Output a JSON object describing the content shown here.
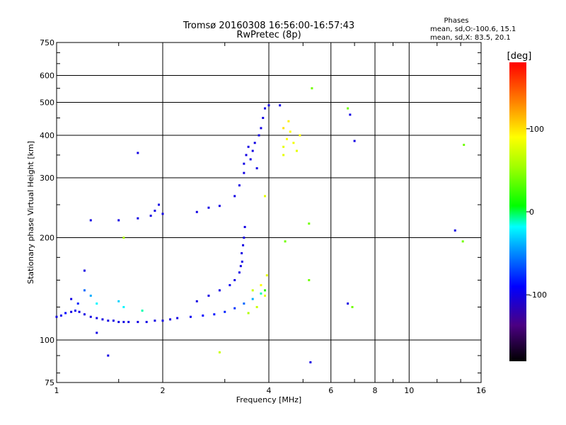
{
  "chart_data": {
    "type": "scatter",
    "title": "Tromsø 20160308 16:56:00-16:57:43",
    "subtitle": "RwPretec (8p)",
    "xlabel": "Frequency [MHz]",
    "ylabel": "Stationary phase Virtual Height [km]",
    "x_scale": "log",
    "y_scale": "log",
    "xlim": [
      1,
      16
    ],
    "ylim": [
      75,
      750
    ],
    "grid": true,
    "x_ticks": [
      {
        "value": 1,
        "label": "1"
      },
      {
        "value": 2,
        "label": "2"
      },
      {
        "value": 4,
        "label": "4"
      },
      {
        "value": 6,
        "label": "6"
      },
      {
        "value": 8,
        "label": "8"
      },
      {
        "value": 10,
        "label": "10"
      },
      {
        "value": 16,
        "label": "16"
      }
    ],
    "y_ticks": [
      {
        "value": 75,
        "label": "75"
      },
      {
        "value": 100,
        "label": "100"
      },
      {
        "value": 200,
        "label": "200"
      },
      {
        "value": 300,
        "label": "300"
      },
      {
        "value": 400,
        "label": "400"
      },
      {
        "value": 500,
        "label": "500"
      },
      {
        "value": 600,
        "label": "600"
      },
      {
        "value": 750,
        "label": "750"
      }
    ],
    "stats_heading": "Phases",
    "stats_lines": [
      "mean, sd,O:-100.6, 15.1",
      "mean, sd,X:  83.5, 20.1"
    ],
    "colorbar": {
      "label": "[deg]",
      "range": [
        -180,
        180
      ],
      "ticks": [
        {
          "value": 100,
          "label": "100"
        },
        {
          "value": 0,
          "label": "0"
        },
        {
          "value": -100,
          "label": "-100"
        }
      ]
    },
    "series": [
      {
        "points": [
          [
            1.0,
            117,
            -100
          ],
          [
            1.03,
            118,
            -95
          ],
          [
            1.06,
            120,
            -90
          ],
          [
            1.1,
            121,
            -100
          ],
          [
            1.13,
            122,
            -95
          ],
          [
            1.16,
            121,
            -100
          ],
          [
            1.2,
            119,
            -100
          ],
          [
            1.25,
            117,
            -100
          ],
          [
            1.3,
            116,
            -100
          ],
          [
            1.35,
            115,
            -100
          ],
          [
            1.4,
            114,
            -100
          ],
          [
            1.45,
            114,
            -100
          ],
          [
            1.5,
            113,
            -100
          ],
          [
            1.55,
            113,
            -100
          ],
          [
            1.6,
            113,
            -100
          ],
          [
            1.7,
            113,
            -100
          ],
          [
            1.8,
            113,
            -100
          ],
          [
            1.9,
            114,
            -100
          ],
          [
            2.0,
            114,
            -100
          ],
          [
            2.1,
            115,
            -100
          ],
          [
            2.2,
            116,
            -100
          ],
          [
            2.4,
            117,
            -95
          ],
          [
            2.6,
            118,
            -90
          ],
          [
            2.8,
            119,
            -85
          ],
          [
            3.0,
            121,
            -80
          ],
          [
            3.2,
            124,
            -75
          ],
          [
            3.4,
            128,
            -60
          ],
          [
            3.6,
            132,
            -40
          ],
          [
            3.8,
            137,
            -10
          ],
          [
            3.9,
            140,
            20
          ],
          [
            1.25,
            135,
            -40
          ],
          [
            1.3,
            128,
            -20
          ],
          [
            1.2,
            140,
            -60
          ],
          [
            1.5,
            130,
            -30
          ],
          [
            1.55,
            125,
            -20
          ],
          [
            1.75,
            122,
            -10
          ],
          [
            1.1,
            132,
            -100
          ],
          [
            1.15,
            128,
            -80
          ],
          [
            3.35,
            180,
            -100
          ],
          [
            3.38,
            190,
            -100
          ],
          [
            3.4,
            200,
            -100
          ],
          [
            3.42,
            215,
            -100
          ],
          [
            3.36,
            170,
            -100
          ],
          [
            3.33,
            165,
            -100
          ],
          [
            3.3,
            158,
            -100
          ],
          [
            3.2,
            150,
            -100
          ],
          [
            3.1,
            145,
            -95
          ],
          [
            2.9,
            140,
            -100
          ],
          [
            2.7,
            135,
            -100
          ],
          [
            2.5,
            130,
            -100
          ],
          [
            3.5,
            120,
            60
          ],
          [
            3.7,
            125,
            70
          ],
          [
            3.9,
            135,
            80
          ],
          [
            3.8,
            145,
            90
          ],
          [
            3.95,
            155,
            80
          ],
          [
            3.6,
            140,
            70
          ],
          [
            1.25,
            225,
            -100
          ],
          [
            1.5,
            225,
            -100
          ],
          [
            1.7,
            228,
            -100
          ],
          [
            1.85,
            232,
            -100
          ],
          [
            1.9,
            240,
            -100
          ],
          [
            1.95,
            250,
            -100
          ],
          [
            2.0,
            235,
            -100
          ],
          [
            2.5,
            238,
            -100
          ],
          [
            2.7,
            245,
            -100
          ],
          [
            2.9,
            248,
            -100
          ],
          [
            3.2,
            265,
            -100
          ],
          [
            3.3,
            285,
            -100
          ],
          [
            3.4,
            310,
            -100
          ],
          [
            3.4,
            330,
            -100
          ],
          [
            3.45,
            350,
            -100
          ],
          [
            3.5,
            370,
            -100
          ],
          [
            3.55,
            340,
            -100
          ],
          [
            3.6,
            360,
            -100
          ],
          [
            3.65,
            380,
            -100
          ],
          [
            3.7,
            320,
            -100
          ],
          [
            3.75,
            400,
            -100
          ],
          [
            3.8,
            420,
            -100
          ],
          [
            3.85,
            450,
            -100
          ],
          [
            3.9,
            480,
            -100
          ],
          [
            4.3,
            490,
            -100
          ],
          [
            4.0,
            490,
            -100
          ],
          [
            4.4,
            370,
            80
          ],
          [
            4.5,
            390,
            90
          ],
          [
            4.6,
            410,
            90
          ],
          [
            4.7,
            380,
            85
          ],
          [
            4.8,
            360,
            80
          ],
          [
            4.4,
            420,
            100
          ],
          [
            4.55,
            440,
            95
          ],
          [
            4.9,
            400,
            90
          ],
          [
            4.4,
            350,
            80
          ],
          [
            1.7,
            355,
            -100
          ],
          [
            5.2,
            220,
            40
          ],
          [
            5.3,
            550,
            40
          ],
          [
            6.7,
            480,
            40
          ],
          [
            6.8,
            460,
            -100
          ],
          [
            7.0,
            385,
            -100
          ],
          [
            6.7,
            128,
            -100
          ],
          [
            6.9,
            125,
            40
          ],
          [
            13.5,
            210,
            -100
          ],
          [
            14.2,
            195,
            40
          ],
          [
            14.3,
            375,
            40
          ],
          [
            5.25,
            86,
            -100
          ],
          [
            2.9,
            92,
            70
          ],
          [
            1.4,
            90,
            -100
          ],
          [
            1.3,
            105,
            -100
          ],
          [
            1.2,
            160,
            -100
          ],
          [
            1.55,
            200,
            60
          ],
          [
            5.2,
            150,
            40
          ],
          [
            4.45,
            195,
            40
          ],
          [
            3.9,
            265,
            80
          ]
        ]
      }
    ]
  }
}
